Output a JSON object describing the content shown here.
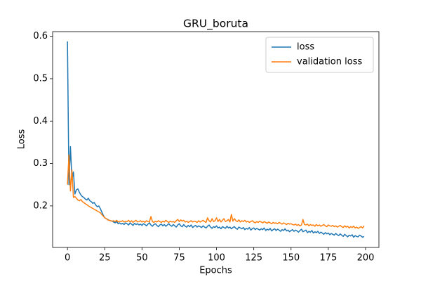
{
  "chart_data": {
    "type": "line",
    "title": "GRU_boruta",
    "x_label": "Epochs",
    "y_label": "Loss",
    "x": [
      0,
      1,
      2,
      3,
      4,
      5,
      6,
      7,
      8,
      9,
      10,
      11,
      12,
      13,
      14,
      15,
      16,
      17,
      18,
      19,
      20,
      21,
      22,
      23,
      24,
      25,
      26,
      27,
      28,
      29,
      30,
      31,
      32,
      33,
      34,
      35,
      36,
      37,
      38,
      39,
      40,
      41,
      42,
      43,
      44,
      45,
      46,
      47,
      48,
      49,
      50,
      51,
      52,
      53,
      54,
      55,
      56,
      57,
      58,
      59,
      60,
      61,
      62,
      63,
      64,
      65,
      66,
      67,
      68,
      69,
      70,
      71,
      72,
      73,
      74,
      75,
      76,
      77,
      78,
      79,
      80,
      81,
      82,
      83,
      84,
      85,
      86,
      87,
      88,
      89,
      90,
      91,
      92,
      93,
      94,
      95,
      96,
      97,
      98,
      99,
      100,
      101,
      102,
      103,
      104,
      105,
      106,
      107,
      108,
      109,
      110,
      111,
      112,
      113,
      114,
      115,
      116,
      117,
      118,
      119,
      120,
      121,
      122,
      123,
      124,
      125,
      126,
      127,
      128,
      129,
      130,
      131,
      132,
      133,
      134,
      135,
      136,
      137,
      138,
      139,
      140,
      141,
      142,
      143,
      144,
      145,
      146,
      147,
      148,
      149,
      150,
      151,
      152,
      153,
      154,
      155,
      156,
      157,
      158,
      159,
      160,
      161,
      162,
      163,
      164,
      165,
      166,
      167,
      168,
      169,
      170,
      171,
      172,
      173,
      174,
      175,
      176,
      177,
      178,
      179,
      180,
      181,
      182,
      183,
      184,
      185,
      186,
      187,
      188,
      189,
      190,
      191,
      192,
      193,
      194,
      195,
      196,
      197,
      198,
      199
    ],
    "series": [
      {
        "name": "loss",
        "color": "#1f77b4",
        "values": [
          0.588,
          0.25,
          0.34,
          0.262,
          0.28,
          0.228,
          0.238,
          0.24,
          0.232,
          0.226,
          0.222,
          0.22,
          0.216,
          0.214,
          0.218,
          0.212,
          0.21,
          0.206,
          0.208,
          0.202,
          0.198,
          0.2,
          0.194,
          0.186,
          0.178,
          0.172,
          0.17,
          0.168,
          0.166,
          0.165,
          0.164,
          0.162,
          0.16,
          0.163,
          0.158,
          0.16,
          0.157,
          0.159,
          0.156,
          0.16,
          0.158,
          0.155,
          0.16,
          0.157,
          0.154,
          0.159,
          0.156,
          0.158,
          0.155,
          0.157,
          0.154,
          0.158,
          0.156,
          0.153,
          0.157,
          0.16,
          0.155,
          0.152,
          0.156,
          0.158,
          0.154,
          0.151,
          0.155,
          0.157,
          0.153,
          0.156,
          0.152,
          0.155,
          0.158,
          0.154,
          0.152,
          0.156,
          0.153,
          0.15,
          0.155,
          0.158,
          0.153,
          0.151,
          0.156,
          0.152,
          0.15,
          0.154,
          0.151,
          0.155,
          0.149,
          0.152,
          0.154,
          0.15,
          0.153,
          0.151,
          0.149,
          0.153,
          0.15,
          0.148,
          0.152,
          0.155,
          0.15,
          0.147,
          0.151,
          0.149,
          0.153,
          0.148,
          0.15,
          0.146,
          0.151,
          0.149,
          0.147,
          0.152,
          0.148,
          0.15,
          0.146,
          0.149,
          0.151,
          0.147,
          0.145,
          0.15,
          0.148,
          0.146,
          0.149,
          0.144,
          0.147,
          0.145,
          0.149,
          0.143,
          0.146,
          0.148,
          0.144,
          0.147,
          0.145,
          0.143,
          0.146,
          0.144,
          0.148,
          0.142,
          0.145,
          0.143,
          0.147,
          0.141,
          0.144,
          0.146,
          0.142,
          0.145,
          0.143,
          0.14,
          0.144,
          0.142,
          0.146,
          0.141,
          0.143,
          0.139,
          0.142,
          0.144,
          0.14,
          0.143,
          0.141,
          0.138,
          0.142,
          0.145,
          0.139,
          0.141,
          0.143,
          0.137,
          0.14,
          0.138,
          0.142,
          0.136,
          0.139,
          0.137,
          0.14,
          0.135,
          0.138,
          0.136,
          0.133,
          0.137,
          0.134,
          0.136,
          0.132,
          0.135,
          0.133,
          0.131,
          0.135,
          0.132,
          0.13,
          0.134,
          0.131,
          0.128,
          0.133,
          0.13,
          0.127,
          0.131,
          0.129,
          0.132,
          0.126,
          0.13,
          0.128,
          0.127,
          0.131,
          0.129,
          0.126,
          0.128
        ]
      },
      {
        "name": "validation loss",
        "color": "#ff7f0e",
        "values": [
          0.25,
          0.32,
          0.235,
          0.285,
          0.22,
          0.222,
          0.218,
          0.214,
          0.212,
          0.215,
          0.21,
          0.208,
          0.205,
          0.203,
          0.2,
          0.198,
          0.196,
          0.194,
          0.192,
          0.19,
          0.188,
          0.186,
          0.184,
          0.18,
          0.176,
          0.172,
          0.17,
          0.167,
          0.166,
          0.165,
          0.164,
          0.165,
          0.163,
          0.166,
          0.162,
          0.164,
          0.163,
          0.165,
          0.162,
          0.164,
          0.163,
          0.166,
          0.162,
          0.165,
          0.161,
          0.164,
          0.166,
          0.162,
          0.163,
          0.165,
          0.162,
          0.164,
          0.161,
          0.165,
          0.163,
          0.162,
          0.175,
          0.163,
          0.161,
          0.164,
          0.162,
          0.165,
          0.163,
          0.161,
          0.164,
          0.162,
          0.166,
          0.163,
          0.161,
          0.164,
          0.162,
          0.163,
          0.161,
          0.165,
          0.168,
          0.163,
          0.167,
          0.164,
          0.166,
          0.162,
          0.164,
          0.161,
          0.163,
          0.165,
          0.162,
          0.164,
          0.163,
          0.161,
          0.165,
          0.162,
          0.164,
          0.166,
          0.163,
          0.161,
          0.172,
          0.165,
          0.162,
          0.17,
          0.163,
          0.165,
          0.172,
          0.163,
          0.168,
          0.162,
          0.166,
          0.17,
          0.163,
          0.165,
          0.168,
          0.162,
          0.18,
          0.164,
          0.17,
          0.165,
          0.163,
          0.167,
          0.162,
          0.165,
          0.163,
          0.166,
          0.162,
          0.164,
          0.161,
          0.163,
          0.165,
          0.162,
          0.16,
          0.163,
          0.161,
          0.164,
          0.162,
          0.16,
          0.163,
          0.161,
          0.159,
          0.162,
          0.16,
          0.158,
          0.161,
          0.159,
          0.16,
          0.158,
          0.161,
          0.159,
          0.157,
          0.16,
          0.158,
          0.156,
          0.159,
          0.157,
          0.158,
          0.156,
          0.155,
          0.157,
          0.154,
          0.156,
          0.153,
          0.155,
          0.168,
          0.156,
          0.155,
          0.157,
          0.153,
          0.156,
          0.154,
          0.155,
          0.152,
          0.156,
          0.153,
          0.155,
          0.152,
          0.154,
          0.156,
          0.153,
          0.151,
          0.155,
          0.153,
          0.152,
          0.154,
          0.151,
          0.153,
          0.15,
          0.152,
          0.154,
          0.151,
          0.149,
          0.153,
          0.15,
          0.152,
          0.148,
          0.151,
          0.149,
          0.152,
          0.148,
          0.15,
          0.147,
          0.149,
          0.151,
          0.148,
          0.153
        ]
      }
    ],
    "xlim": [
      -9.95,
      208.95
    ],
    "ylim": [
      0.102,
      0.611
    ],
    "xticks": [
      0,
      25,
      50,
      75,
      100,
      125,
      150,
      175,
      200
    ],
    "yticks": [
      0.2,
      0.3,
      0.4,
      0.5,
      0.6
    ],
    "legend": "upper right"
  }
}
